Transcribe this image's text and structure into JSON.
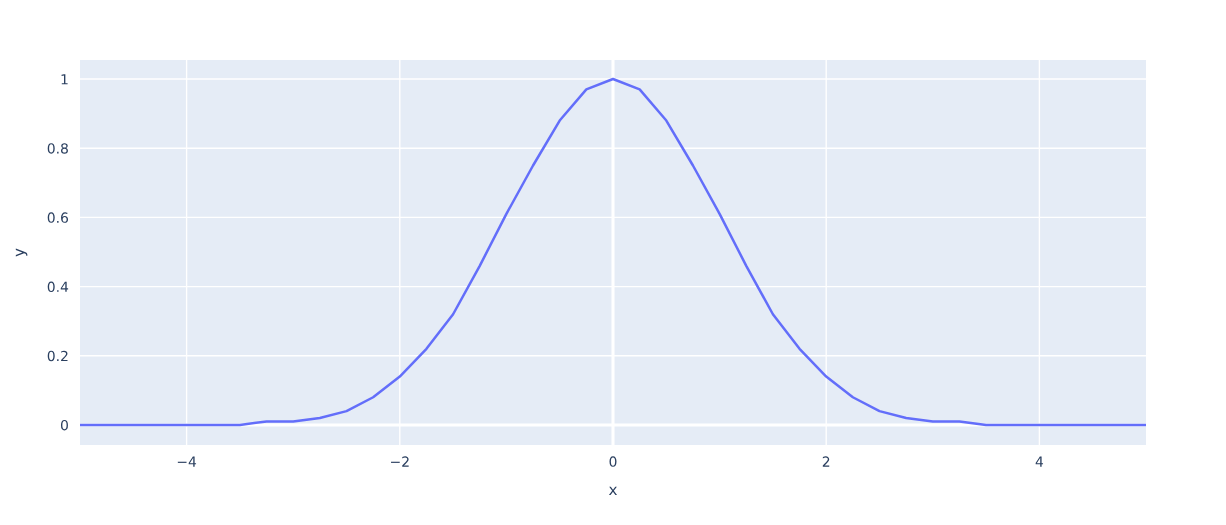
{
  "chart_data": {
    "type": "line",
    "xlabel": "x",
    "ylabel": "y",
    "x": [
      -5,
      -4.75,
      -4.5,
      -4.25,
      -4,
      -3.75,
      -3.5,
      -3.25,
      -3,
      -2.75,
      -2.5,
      -2.25,
      -2,
      -1.75,
      -1.5,
      -1.25,
      -1,
      -0.75,
      -0.5,
      -0.25,
      0,
      0.25,
      0.5,
      0.75,
      1,
      1.25,
      1.5,
      1.75,
      2,
      2.25,
      2.5,
      2.75,
      3,
      3.25,
      3.5,
      3.75,
      4,
      4.25,
      4.5,
      4.75,
      5
    ],
    "series": [
      {
        "color": "#636efa",
        "values": [
          0,
          0,
          0,
          0,
          0,
          0,
          0,
          0.01,
          0.01,
          0.02,
          0.04,
          0.08,
          0.14,
          0.22,
          0.32,
          0.46,
          0.61,
          0.75,
          0.88,
          0.97,
          1,
          0.97,
          0.88,
          0.75,
          0.61,
          0.46,
          0.32,
          0.22,
          0.14,
          0.08,
          0.04,
          0.02,
          0.01,
          0.01,
          0,
          0,
          0,
          0,
          0,
          0,
          0
        ]
      }
    ],
    "xlim": [
      -5,
      5
    ],
    "ylim": [
      -0.058,
      1.055
    ],
    "xticks": [
      {
        "value": -4,
        "label": "−4"
      },
      {
        "value": -2,
        "label": "−2"
      },
      0,
      2,
      4
    ],
    "yticks": [
      0,
      0.2,
      0.4,
      0.6,
      0.8,
      1
    ],
    "grid": true,
    "marker": "none",
    "line_style": "solid"
  }
}
